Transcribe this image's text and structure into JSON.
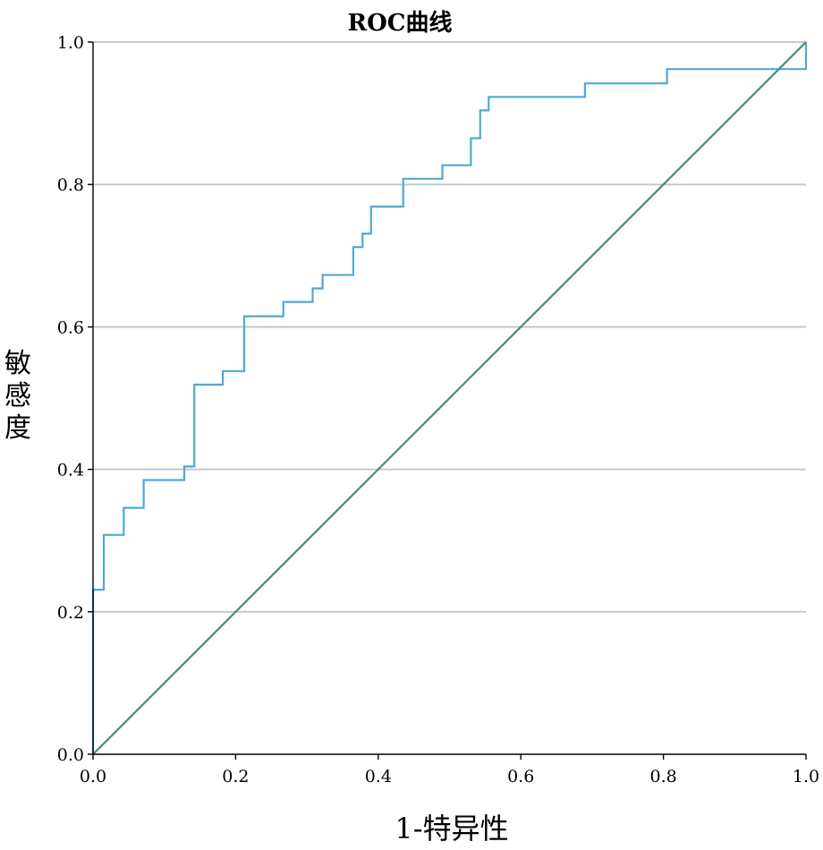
{
  "chart_data": {
    "type": "line",
    "title": "ROC曲线",
    "xlabel": "1-特异性",
    "ylabel_chars": [
      "敏",
      "感",
      "度"
    ],
    "xlim": [
      0,
      1
    ],
    "ylim": [
      0,
      1
    ],
    "x_ticks": [
      "0.0",
      "0.2",
      "0.4",
      "0.6",
      "0.8",
      "1.0"
    ],
    "y_ticks": [
      "0.0",
      "0.2",
      "0.4",
      "0.6",
      "0.8",
      "1.0"
    ],
    "grid": "horizontal",
    "series": [
      {
        "color": "#4da9d9",
        "points": [
          [
            0.0,
            0.0
          ],
          [
            0.0,
            0.231
          ],
          [
            0.015,
            0.231
          ],
          [
            0.015,
            0.308
          ],
          [
            0.043,
            0.308
          ],
          [
            0.043,
            0.346
          ],
          [
            0.071,
            0.346
          ],
          [
            0.071,
            0.385
          ],
          [
            0.128,
            0.385
          ],
          [
            0.128,
            0.404
          ],
          [
            0.142,
            0.404
          ],
          [
            0.142,
            0.519
          ],
          [
            0.182,
            0.519
          ],
          [
            0.182,
            0.538
          ],
          [
            0.212,
            0.538
          ],
          [
            0.212,
            0.615
          ],
          [
            0.267,
            0.615
          ],
          [
            0.267,
            0.635
          ],
          [
            0.308,
            0.635
          ],
          [
            0.308,
            0.654
          ],
          [
            0.322,
            0.654
          ],
          [
            0.322,
            0.673
          ],
          [
            0.365,
            0.673
          ],
          [
            0.365,
            0.712
          ],
          [
            0.378,
            0.712
          ],
          [
            0.378,
            0.731
          ],
          [
            0.39,
            0.731
          ],
          [
            0.39,
            0.769
          ],
          [
            0.435,
            0.769
          ],
          [
            0.435,
            0.808
          ],
          [
            0.49,
            0.808
          ],
          [
            0.49,
            0.827
          ],
          [
            0.53,
            0.827
          ],
          [
            0.53,
            0.865
          ],
          [
            0.543,
            0.865
          ],
          [
            0.543,
            0.904
          ],
          [
            0.555,
            0.904
          ],
          [
            0.555,
            0.923
          ],
          [
            0.69,
            0.923
          ],
          [
            0.69,
            0.942
          ],
          [
            0.805,
            0.942
          ],
          [
            0.805,
            0.962
          ],
          [
            1.0,
            0.962
          ],
          [
            1.0,
            1.0
          ]
        ]
      },
      {
        "color": "#3d8f7c",
        "points": [
          [
            0,
            0
          ],
          [
            1,
            1
          ]
        ]
      }
    ]
  }
}
